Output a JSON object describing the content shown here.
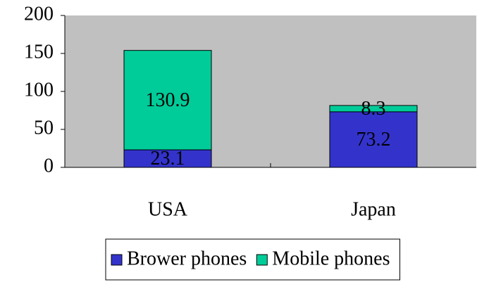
{
  "chart_data": {
    "type": "stacked_bar",
    "categories": [
      "USA",
      "Japan"
    ],
    "series": [
      {
        "name": "Brower phones",
        "color": "#3333cc",
        "values": [
          23.1,
          73.2
        ]
      },
      {
        "name": "Mobile phones",
        "color": "#00cc99",
        "values": [
          130.9,
          8.3
        ]
      }
    ],
    "ylim": [
      0,
      200
    ],
    "yticks": [
      0,
      50,
      100,
      150,
      200
    ],
    "plot_background": "#c0c0c0",
    "legend": "bottom"
  }
}
